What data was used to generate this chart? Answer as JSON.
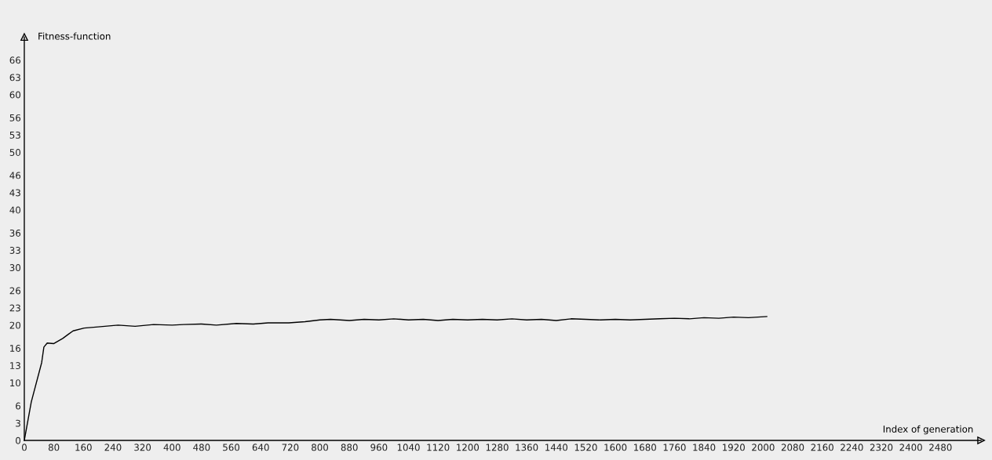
{
  "chart_data": {
    "type": "line",
    "xlabel": "Index of generation",
    "ylabel": "Fitness-function",
    "x": [
      0,
      19,
      47,
      53,
      62,
      80,
      104,
      119,
      132,
      162,
      200,
      254,
      300,
      350,
      400,
      431,
      480,
      520,
      574,
      620,
      660,
      716,
      760,
      800,
      829,
      880,
      920,
      960,
      1000,
      1040,
      1080,
      1120,
      1160,
      1200,
      1240,
      1280,
      1320,
      1360,
      1400,
      1440,
      1480,
      1520,
      1560,
      1600,
      1640,
      1680,
      1720,
      1760,
      1800,
      1840,
      1880,
      1920,
      1960,
      2010
    ],
    "series": [
      {
        "color": "#000000",
        "values": [
          0,
          6.7,
          13.5,
          16.2,
          16.9,
          16.8,
          17.7,
          18.4,
          19.0,
          19.5,
          19.7,
          20.0,
          19.8,
          20.1,
          20.0,
          20.1,
          20.2,
          20.0,
          20.3,
          20.2,
          20.4,
          20.4,
          20.6,
          20.9,
          21.0,
          20.8,
          21.0,
          20.9,
          21.1,
          20.9,
          21.0,
          20.8,
          21.0,
          20.9,
          21.0,
          20.9,
          21.1,
          20.9,
          21.0,
          20.8,
          21.1,
          21.0,
          20.9,
          21.0,
          20.9,
          21.0,
          21.1,
          21.2,
          21.1,
          21.3,
          21.2,
          21.4,
          21.3,
          21.5
        ]
      }
    ],
    "xlim": [
      0,
      2590
    ],
    "ylim": [
      0,
      70
    ],
    "xticks": [
      0,
      80,
      160,
      240,
      320,
      400,
      480,
      560,
      640,
      720,
      800,
      880,
      960,
      1040,
      1120,
      1200,
      1280,
      1360,
      1440,
      1520,
      1600,
      1680,
      1760,
      1840,
      1920,
      2000,
      2080,
      2160,
      2240,
      2320,
      2400,
      2480
    ],
    "yticks": [
      0,
      3,
      6,
      10,
      13,
      16,
      20,
      23,
      26,
      30,
      33,
      36,
      40,
      43,
      46,
      50,
      53,
      56,
      60,
      63,
      66
    ],
    "grid": false,
    "marker": "none",
    "line_style": "solid"
  }
}
